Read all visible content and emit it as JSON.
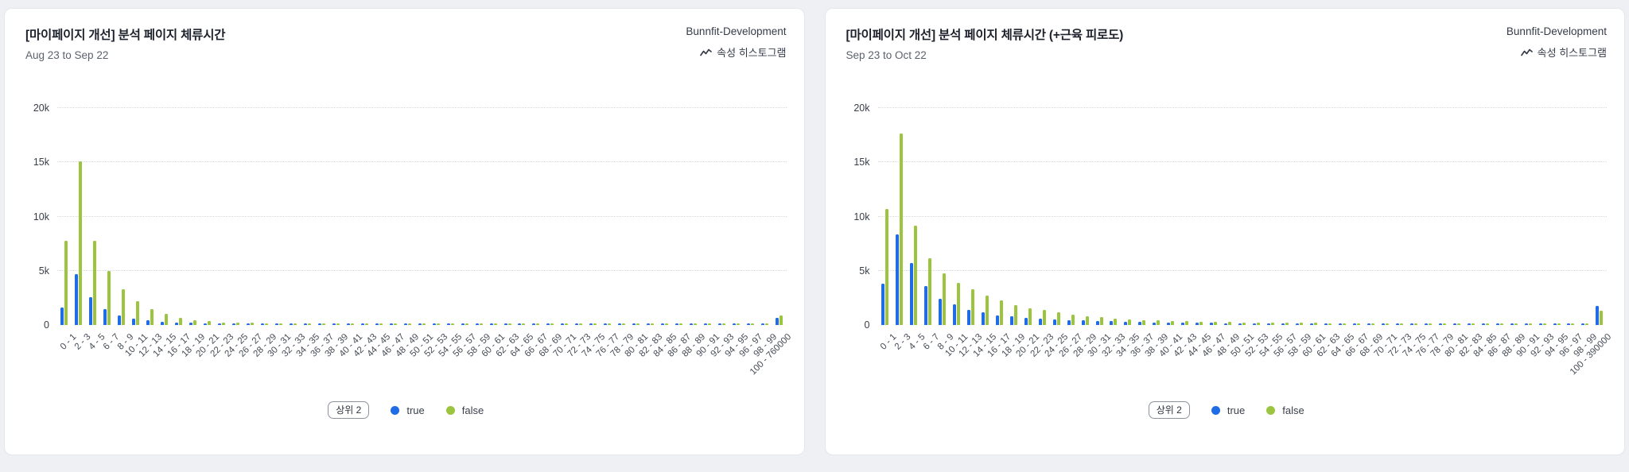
{
  "page": {
    "background": "#eef0f3"
  },
  "cards": [
    {
      "workspace": "Bunnfit-Development",
      "chart_type_label": "속성 히스토그램",
      "legend_badge": "상위 2"
    },
    {
      "workspace": "Bunnfit-Development",
      "chart_type_label": "속성 히스토그램",
      "legend_badge": "상위 2"
    }
  ],
  "chart_data": [
    {
      "type": "bar",
      "title": "[마이페이지 개선] 분석 페이지 체류시간",
      "subtitle": "Aug 23 to Sep 22",
      "xlabel": "",
      "ylabel": "",
      "ylim": [
        0,
        22000
      ],
      "grid": true,
      "legend_position": "bottom",
      "yticks": [
        {
          "v": 0,
          "label": "0"
        },
        {
          "v": 5000,
          "label": "5k"
        },
        {
          "v": 10000,
          "label": "10k"
        },
        {
          "v": 15000,
          "label": "15k"
        },
        {
          "v": 20000,
          "label": "20k"
        }
      ],
      "categories": [
        "0 - 1",
        "2 - 3",
        "4 - 5",
        "6 - 7",
        "8 - 9",
        "10 - 11",
        "12 - 13",
        "14 - 15",
        "16 - 17",
        "18 - 19",
        "20 - 21",
        "22 - 23",
        "24 - 25",
        "26 - 27",
        "28 - 29",
        "30 - 31",
        "32 - 33",
        "34 - 35",
        "36 - 37",
        "38 - 39",
        "40 - 41",
        "42 - 43",
        "44 - 45",
        "46 - 47",
        "48 - 49",
        "50 - 51",
        "52 - 53",
        "54 - 55",
        "56 - 57",
        "58 - 59",
        "60 - 61",
        "62 - 63",
        "64 - 65",
        "66 - 67",
        "68 - 69",
        "70 - 71",
        "72 - 73",
        "74 - 75",
        "76 - 77",
        "78 - 79",
        "80 - 81",
        "82 - 83",
        "84 - 85",
        "86 - 87",
        "88 - 89",
        "90 - 91",
        "92 - 93",
        "94 - 95",
        "96 - 97",
        "98 - 99",
        "100 - 760000"
      ],
      "series": [
        {
          "name": "true",
          "color": "#1f6ce6",
          "values": [
            1600,
            4700,
            2600,
            1500,
            900,
            620,
            470,
            300,
            230,
            190,
            160,
            140,
            130,
            120,
            110,
            110,
            100,
            100,
            90,
            90,
            90,
            80,
            80,
            80,
            80,
            70,
            70,
            70,
            70,
            70,
            60,
            60,
            60,
            60,
            60,
            60,
            60,
            60,
            50,
            50,
            50,
            50,
            50,
            50,
            50,
            50,
            50,
            50,
            50,
            50,
            700
          ]
        },
        {
          "name": "false",
          "color": "#9bc53f",
          "values": [
            7800,
            15100,
            7800,
            5000,
            3300,
            2200,
            1500,
            1000,
            660,
            470,
            340,
            260,
            220,
            190,
            170,
            160,
            150,
            140,
            130,
            130,
            120,
            120,
            110,
            110,
            100,
            100,
            100,
            90,
            90,
            90,
            90,
            80,
            80,
            80,
            80,
            80,
            70,
            70,
            70,
            70,
            70,
            70,
            60,
            60,
            60,
            60,
            60,
            60,
            60,
            60,
            850
          ]
        }
      ]
    },
    {
      "type": "bar",
      "title": "[마이페이지 개선] 분석 페이지 체류시간 (+근육 피로도)",
      "subtitle": "Sep 23 to Oct 22",
      "xlabel": "",
      "ylabel": "",
      "ylim": [
        0,
        22000
      ],
      "grid": true,
      "legend_position": "bottom",
      "yticks": [
        {
          "v": 0,
          "label": "0"
        },
        {
          "v": 5000,
          "label": "5k"
        },
        {
          "v": 10000,
          "label": "10k"
        },
        {
          "v": 15000,
          "label": "15k"
        },
        {
          "v": 20000,
          "label": "20k"
        }
      ],
      "categories": [
        "0 - 1",
        "2 - 3",
        "4 - 5",
        "6 - 7",
        "8 - 9",
        "10 - 11",
        "12 - 13",
        "14 - 15",
        "16 - 17",
        "18 - 19",
        "20 - 21",
        "22 - 23",
        "24 - 25",
        "26 - 27",
        "28 - 29",
        "30 - 31",
        "32 - 33",
        "34 - 35",
        "36 - 37",
        "38 - 39",
        "40 - 41",
        "42 - 43",
        "44 - 45",
        "46 - 47",
        "48 - 49",
        "50 - 51",
        "52 - 53",
        "54 - 55",
        "56 - 57",
        "58 - 59",
        "60 - 61",
        "62 - 63",
        "64 - 65",
        "66 - 67",
        "68 - 69",
        "70 - 71",
        "72 - 73",
        "74 - 75",
        "76 - 77",
        "78 - 79",
        "80 - 81",
        "82 - 83",
        "84 - 85",
        "86 - 87",
        "88 - 89",
        "90 - 91",
        "92 - 93",
        "94 - 95",
        "96 - 97",
        "98 - 99",
        "100 - 390000"
      ],
      "series": [
        {
          "name": "true",
          "color": "#1f6ce6",
          "values": [
            3800,
            8400,
            5700,
            3600,
            2400,
            1900,
            1400,
            1150,
            900,
            800,
            660,
            590,
            520,
            470,
            420,
            380,
            340,
            310,
            280,
            260,
            240,
            220,
            210,
            190,
            180,
            170,
            160,
            150,
            140,
            140,
            130,
            120,
            120,
            110,
            110,
            100,
            100,
            100,
            90,
            90,
            90,
            80,
            80,
            80,
            80,
            80,
            70,
            70,
            70,
            70,
            1800
          ]
        },
        {
          "name": "false",
          "color": "#9bc53f",
          "values": [
            10700,
            17700,
            9200,
            6200,
            4800,
            3900,
            3300,
            2700,
            2300,
            1850,
            1550,
            1400,
            1150,
            950,
            840,
            710,
            620,
            540,
            480,
            430,
            390,
            360,
            330,
            300,
            280,
            260,
            240,
            230,
            210,
            200,
            190,
            180,
            170,
            160,
            150,
            150,
            140,
            130,
            130,
            120,
            120,
            110,
            110,
            110,
            100,
            100,
            100,
            90,
            90,
            90,
            1300
          ]
        }
      ]
    }
  ]
}
